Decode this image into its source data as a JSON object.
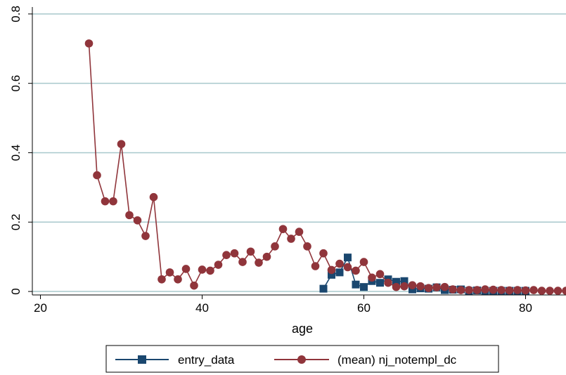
{
  "chart_data": {
    "type": "line",
    "title": "",
    "xlabel": "age",
    "ylabel": "",
    "xlim": [
      19,
      85
    ],
    "ylim": [
      -0.01,
      0.82
    ],
    "xticks": [
      20,
      40,
      60,
      80
    ],
    "yticks": [
      0,
      0.2,
      0.4,
      0.6,
      0.8
    ],
    "xtick_labels": [
      "20",
      "40",
      "60",
      "80"
    ],
    "ytick_labels": [
      "0",
      "0.2",
      "0.4",
      "0.6",
      "0.8"
    ],
    "grid": "horizontal",
    "legend_position": "bottom",
    "series": [
      {
        "name": "entry_data",
        "color": "#1a476f",
        "marker": "square",
        "x": [
          55,
          56,
          57,
          58,
          59,
          60,
          61,
          62,
          63,
          64,
          65,
          66,
          67,
          68,
          69,
          70,
          71,
          72,
          73,
          74,
          75,
          76,
          77,
          78,
          79,
          80
        ],
        "y": [
          0.008,
          0.048,
          0.055,
          0.098,
          0.02,
          0.013,
          0.03,
          0.025,
          0.035,
          0.028,
          0.03,
          0.006,
          0.009,
          0.008,
          0.012,
          0.004,
          0.005,
          0.006,
          0.002,
          0.003,
          0.002,
          0.002,
          0.002,
          0.002,
          0.002,
          0.002
        ]
      },
      {
        "name": "(mean) nj_notempl_dc",
        "color": "#90353b",
        "marker": "circle",
        "x": [
          26,
          27,
          28,
          29,
          30,
          31,
          32,
          33,
          34,
          35,
          36,
          37,
          38,
          39,
          40,
          41,
          42,
          43,
          44,
          45,
          46,
          47,
          48,
          49,
          50,
          51,
          52,
          53,
          54,
          55,
          56,
          57,
          58,
          59,
          60,
          61,
          62,
          63,
          64,
          65,
          66,
          67,
          68,
          69,
          70,
          71,
          72,
          73,
          74,
          75,
          76,
          77,
          78,
          79,
          80,
          81,
          82,
          83,
          84,
          85
        ],
        "y": [
          0.715,
          0.335,
          0.26,
          0.26,
          0.425,
          0.22,
          0.205,
          0.16,
          0.272,
          0.035,
          0.055,
          0.035,
          0.065,
          0.017,
          0.063,
          0.06,
          0.077,
          0.105,
          0.11,
          0.085,
          0.115,
          0.083,
          0.1,
          0.13,
          0.18,
          0.152,
          0.172,
          0.13,
          0.073,
          0.11,
          0.062,
          0.08,
          0.07,
          0.06,
          0.085,
          0.04,
          0.05,
          0.025,
          0.013,
          0.015,
          0.018,
          0.015,
          0.01,
          0.012,
          0.013,
          0.006,
          0.004,
          0.004,
          0.004,
          0.006,
          0.005,
          0.004,
          0.003,
          0.004,
          0.003,
          0.004,
          0.002,
          0.002,
          0.002,
          0.002
        ]
      }
    ]
  }
}
